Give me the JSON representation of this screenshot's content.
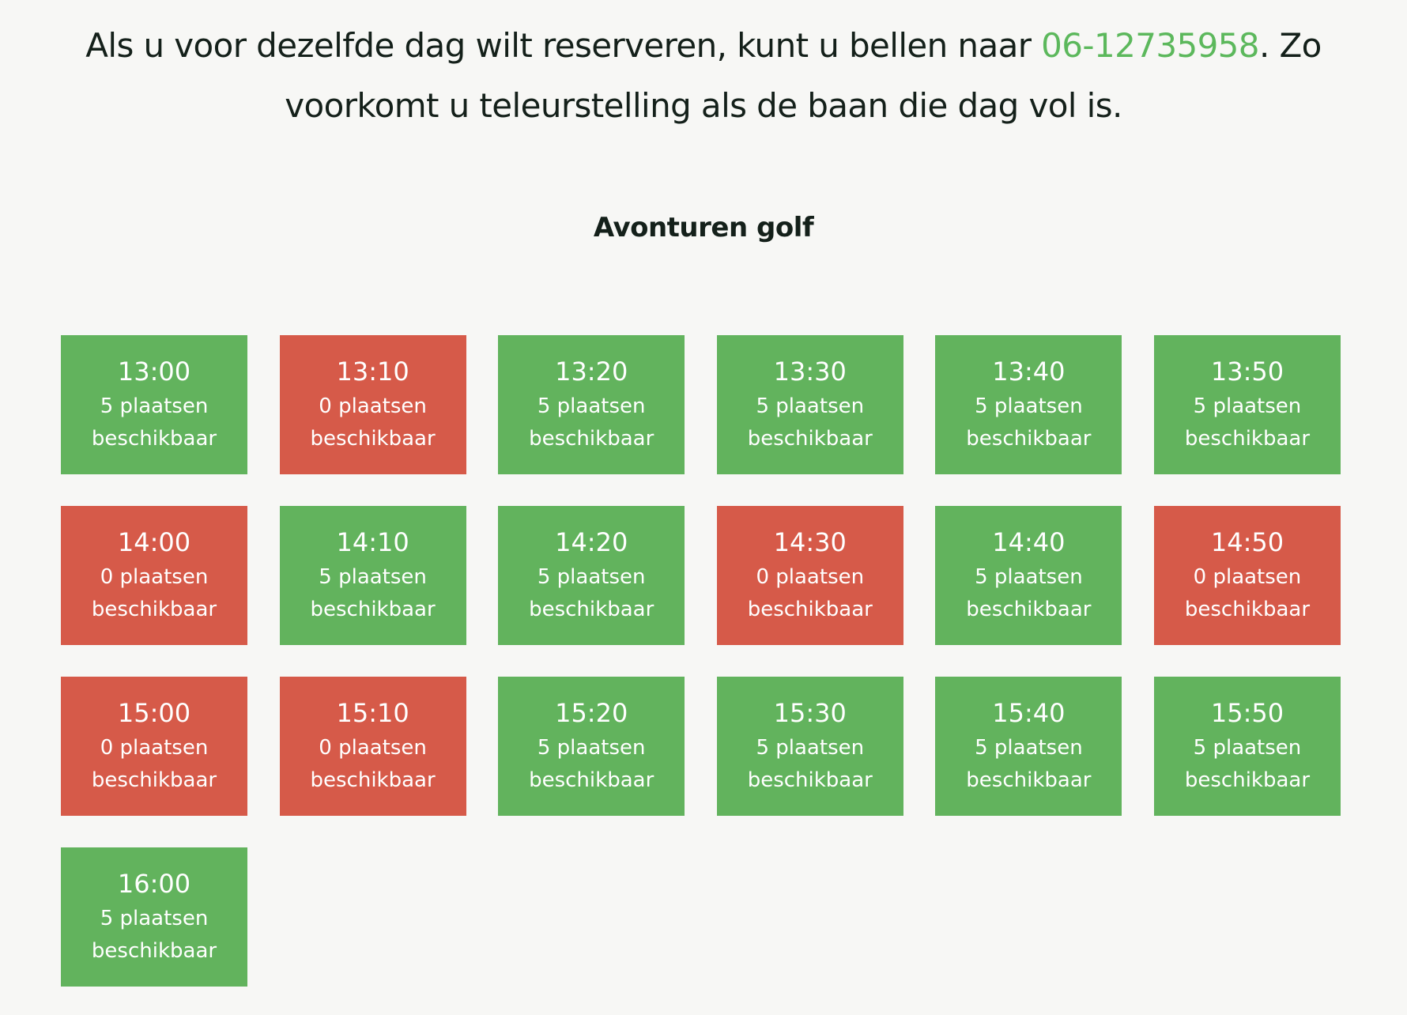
{
  "intro": {
    "text_before": "Als u voor dezelfde dag wilt reserveren, kunt u bellen naar ",
    "phone": "06-12735958",
    "text_after": ". Zo voorkomt u teleurstelling als de baan die dag vol is."
  },
  "section_title": "Avonturen golf",
  "colors": {
    "available": "#62b35d",
    "full": "#d65a49",
    "link": "#5cb85c"
  },
  "slots": [
    {
      "time": "13:00",
      "seats": "5 plaatsen",
      "label": "beschikbaar",
      "status": "available"
    },
    {
      "time": "13:10",
      "seats": "0 plaatsen",
      "label": "beschikbaar",
      "status": "full"
    },
    {
      "time": "13:20",
      "seats": "5 plaatsen",
      "label": "beschikbaar",
      "status": "available"
    },
    {
      "time": "13:30",
      "seats": "5 plaatsen",
      "label": "beschikbaar",
      "status": "available"
    },
    {
      "time": "13:40",
      "seats": "5 plaatsen",
      "label": "beschikbaar",
      "status": "available"
    },
    {
      "time": "13:50",
      "seats": "5 plaatsen",
      "label": "beschikbaar",
      "status": "available"
    },
    {
      "time": "14:00",
      "seats": "0 plaatsen",
      "label": "beschikbaar",
      "status": "full"
    },
    {
      "time": "14:10",
      "seats": "5 plaatsen",
      "label": "beschikbaar",
      "status": "available"
    },
    {
      "time": "14:20",
      "seats": "5 plaatsen",
      "label": "beschikbaar",
      "status": "available"
    },
    {
      "time": "14:30",
      "seats": "0 plaatsen",
      "label": "beschikbaar",
      "status": "full"
    },
    {
      "time": "14:40",
      "seats": "5 plaatsen",
      "label": "beschikbaar",
      "status": "available"
    },
    {
      "time": "14:50",
      "seats": "0 plaatsen",
      "label": "beschikbaar",
      "status": "full"
    },
    {
      "time": "15:00",
      "seats": "0 plaatsen",
      "label": "beschikbaar",
      "status": "full"
    },
    {
      "time": "15:10",
      "seats": "0 plaatsen",
      "label": "beschikbaar",
      "status": "full"
    },
    {
      "time": "15:20",
      "seats": "5 plaatsen",
      "label": "beschikbaar",
      "status": "available"
    },
    {
      "time": "15:30",
      "seats": "5 plaatsen",
      "label": "beschikbaar",
      "status": "available"
    },
    {
      "time": "15:40",
      "seats": "5 plaatsen",
      "label": "beschikbaar",
      "status": "available"
    },
    {
      "time": "15:50",
      "seats": "5 plaatsen",
      "label": "beschikbaar",
      "status": "available"
    },
    {
      "time": "16:00",
      "seats": "5 plaatsen",
      "label": "beschikbaar",
      "status": "available"
    }
  ]
}
